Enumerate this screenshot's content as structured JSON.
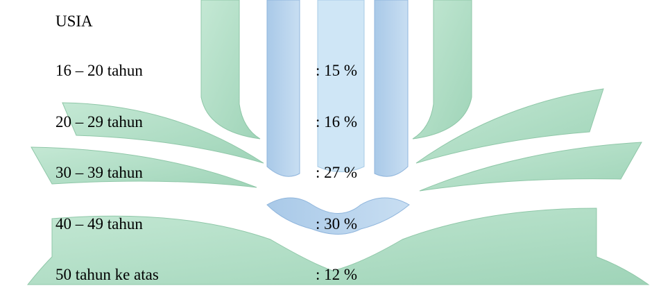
{
  "heading": "USIA",
  "rows": [
    {
      "label": "16 – 20 tahun",
      "value": ": 15 %"
    },
    {
      "label": "20 – 29 tahun",
      "value": ": 16 %"
    },
    {
      "label": "30 – 39 tahun",
      "value": ": 27 %"
    },
    {
      "label": "40 – 49 tahun",
      "value": ": 30 %"
    },
    {
      "label": "50 tahun ke atas",
      "value": ": 12 %"
    }
  ]
}
